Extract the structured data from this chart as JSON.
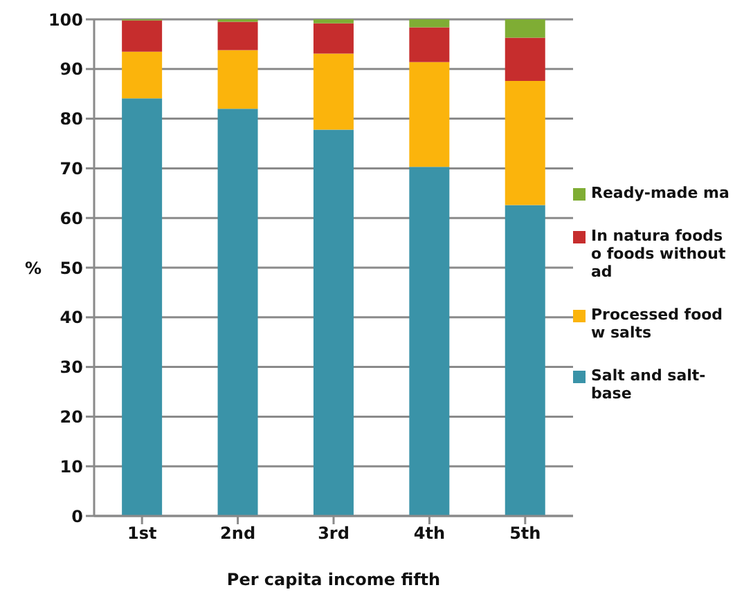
{
  "chart_data": {
    "type": "bar",
    "stacked": true,
    "xlabel": "Per capita income fifth",
    "ylabel": "%",
    "categories": [
      "1st",
      "2nd",
      "3rd",
      "4th",
      "5th"
    ],
    "series": [
      {
        "name": "Salt and salt-base",
        "color": "#3a93a8",
        "values": [
          84.1,
          82.0,
          77.8,
          70.3,
          62.6
        ]
      },
      {
        "name": "Processed food w salts",
        "color": "#fbb40c",
        "values": [
          9.4,
          11.8,
          15.3,
          21.1,
          25.0
        ]
      },
      {
        "name": "In natura foods o foods without ad",
        "color": "#c62d2d",
        "values": [
          6.3,
          5.7,
          6.1,
          7.0,
          8.7
        ]
      },
      {
        "name": "Ready-made ma",
        "color": "#7fad34",
        "values": [
          0.2,
          0.5,
          0.8,
          1.6,
          3.7
        ]
      }
    ],
    "ylim": [
      0,
      100
    ],
    "yticks": [
      0,
      10,
      20,
      30,
      40,
      50,
      60,
      70,
      80,
      90,
      100
    ],
    "grid": "y",
    "legend": "right"
  }
}
